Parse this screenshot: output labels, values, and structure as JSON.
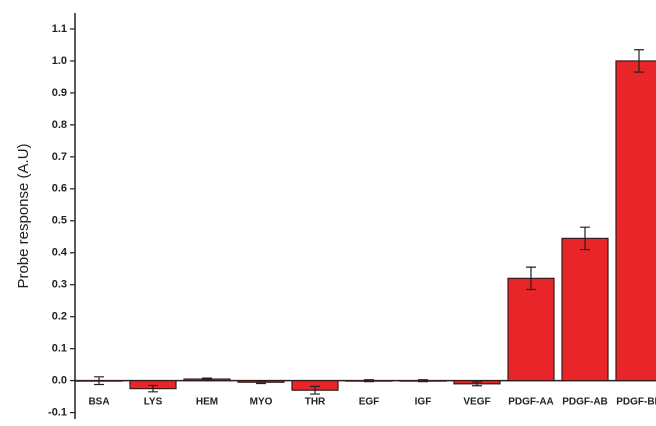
{
  "chart_data": {
    "type": "bar",
    "y_label": "Probe response (A.U)",
    "categories": [
      "BSA",
      "LYS",
      "HEM",
      "MYO",
      "THR",
      "EGF",
      "IGF",
      "VEGF",
      "PDGF-AA",
      "PDGF-AB",
      "PDGF-BB"
    ],
    "values": [
      0,
      -0.025,
      0.005,
      -0.005,
      -0.03,
      0,
      0,
      -0.01,
      0.32,
      0.445,
      1.0
    ],
    "errors": [
      0.012,
      0.01,
      0.003,
      0.004,
      0.012,
      0.003,
      0.003,
      0.006,
      0.035,
      0.035,
      0.035
    ],
    "color": "#e8262a",
    "ylim": [
      -0.12,
      1.15
    ],
    "yticks": [
      -0.1,
      {
        "value": 0,
        "label": "0.0"
      },
      0.1,
      0.2,
      0.3,
      0.4,
      0.5,
      0.6,
      0.7,
      0.8,
      0.9,
      {
        "value": 1,
        "label": "1.0"
      },
      1.1
    ]
  }
}
